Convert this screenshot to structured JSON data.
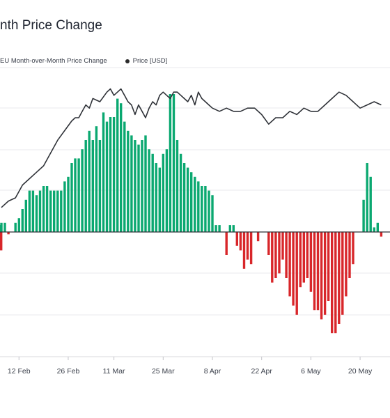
{
  "title": "nth Price Change",
  "legend": {
    "mom_label": "EU Month-over-Month Price Change",
    "price_label": "Price [USD]"
  },
  "colors": {
    "positive": "#0aa870",
    "negative": "#d8262a",
    "price_line": "#2f3238",
    "grid": "#e9e9ec",
    "zero": "#2f3238"
  },
  "chart_data": {
    "type": "bar",
    "title": "nth Price Change",
    "xlabel": "",
    "ylabel": "",
    "x_ticks": [
      "12 Feb",
      "26 Feb",
      "11 Mar",
      "25 Mar",
      "8 Apr",
      "22 Apr",
      "6 May",
      "20 May"
    ],
    "x_tick_day_index": [
      5,
      19,
      32,
      46,
      60,
      74,
      88,
      102
    ],
    "series": [
      {
        "name": "EU Month-over-Month Price Change",
        "type": "bar",
        "x_day_index": [
          0,
          1,
          2,
          3,
          4,
          5,
          6,
          7,
          8,
          9,
          10,
          11,
          12,
          13,
          14,
          15,
          16,
          17,
          18,
          19,
          20,
          21,
          22,
          23,
          24,
          25,
          26,
          27,
          28,
          29,
          30,
          31,
          32,
          33,
          34,
          35,
          36,
          37,
          38,
          39,
          40,
          41,
          42,
          43,
          44,
          45,
          46,
          47,
          48,
          49,
          50,
          51,
          52,
          53,
          54,
          55,
          56,
          57,
          58,
          59,
          60,
          61,
          62,
          63,
          64,
          65,
          66,
          67,
          68,
          69,
          70,
          71,
          72,
          73,
          74,
          75,
          76,
          77,
          78,
          79,
          80,
          81,
          82,
          83,
          84,
          85,
          86,
          87,
          88,
          89,
          90,
          91,
          92,
          93,
          94,
          95,
          96,
          97,
          98,
          99,
          100,
          101,
          102,
          103,
          104,
          105,
          106,
          107,
          108
        ],
        "values": [
          2,
          2,
          -0.5,
          0,
          2,
          3,
          5,
          7,
          9,
          9,
          8,
          9,
          10,
          10,
          9,
          9,
          9,
          9,
          11,
          12,
          15,
          16,
          16,
          18,
          20,
          22,
          20,
          23,
          20,
          26,
          24,
          25,
          25,
          29,
          28,
          24,
          22,
          21,
          20,
          19,
          20,
          21,
          18,
          17,
          15,
          14,
          17,
          18,
          30,
          30,
          20,
          17,
          15,
          14,
          13,
          12,
          11,
          10,
          10,
          9,
          8,
          1.5,
          1.5,
          0,
          -5,
          1.5,
          1.5,
          -3,
          -4,
          -8,
          -6,
          -7,
          0,
          -2,
          0,
          0,
          -5,
          -11,
          -10,
          -9,
          -6,
          -10,
          -14,
          -16,
          -18,
          -12,
          -11,
          -10,
          -13,
          -17,
          -17,
          -19,
          -18,
          -15,
          -22,
          -22,
          -20,
          -18,
          -14,
          -10,
          -7,
          0,
          0,
          7,
          15,
          12,
          1,
          2,
          -1,
          -4,
          1.5,
          1.5
        ],
        "unit": "%"
      },
      {
        "name": "Price [USD]",
        "type": "line",
        "x_day_index": [
          0,
          2,
          4,
          6,
          8,
          10,
          12,
          14,
          16,
          18,
          20,
          21,
          22,
          23,
          24,
          25,
          26,
          28,
          30,
          31,
          32,
          33,
          34,
          35,
          36,
          37,
          38,
          39,
          40,
          41,
          42,
          43,
          44,
          45,
          46,
          47,
          48,
          49,
          50,
          51,
          52,
          53,
          54,
          55,
          56,
          57,
          58,
          59,
          60,
          62,
          64,
          66,
          68,
          70,
          72,
          74,
          76,
          78,
          80,
          82,
          84,
          86,
          88,
          90,
          92,
          94,
          96,
          98,
          100,
          102,
          104,
          106,
          108
        ],
        "values": [
          3.2,
          3.4,
          3.5,
          3.9,
          4.1,
          4.3,
          4.5,
          4.9,
          5.3,
          5.6,
          5.9,
          6.0,
          6.0,
          6.2,
          6.4,
          6.3,
          6.6,
          6.5,
          6.8,
          6.9,
          6.7,
          6.8,
          6.9,
          6.7,
          6.5,
          6.4,
          6.1,
          6.4,
          6.2,
          6.0,
          6.3,
          6.5,
          6.4,
          6.7,
          6.8,
          6.7,
          6.6,
          6.8,
          6.8,
          6.7,
          6.6,
          6.5,
          6.7,
          6.4,
          6.8,
          6.6,
          6.5,
          6.4,
          6.3,
          6.2,
          6.3,
          6.2,
          6.2,
          6.3,
          6.3,
          6.1,
          5.8,
          6.0,
          6.0,
          6.2,
          6.1,
          6.3,
          6.2,
          6.2,
          6.4,
          6.6,
          6.8,
          6.7,
          6.5,
          6.3,
          6.4,
          6.5,
          6.4
        ],
        "unit": "USD"
      }
    ],
    "grid": true,
    "legend_position": "top-left"
  }
}
